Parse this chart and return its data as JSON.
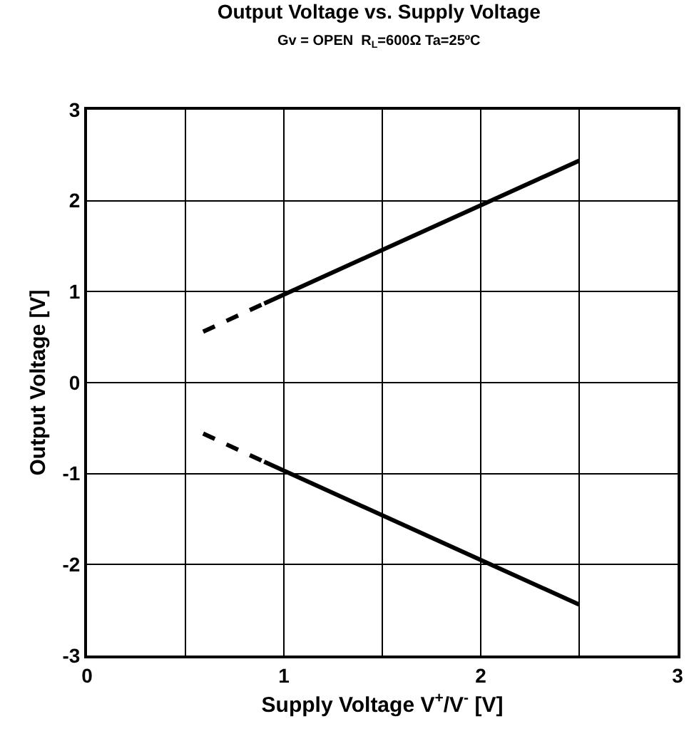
{
  "chart_data": {
    "type": "line",
    "title": "Output Voltage vs. Supply Voltage",
    "subtitle": "Gv = OPEN  R$_{L}$=600Ω Ta=25ºC",
    "xlabel": "Supply Voltage V$^{+}$/V$^{-}$ [V]",
    "ylabel": "Output Voltage [V]",
    "series": [
      {
        "color": "#000000",
        "line_style": "dashed",
        "x": [
          0.59,
          0.9
        ],
        "values": [
          0.56,
          0.87
        ]
      },
      {
        "color": "#000000",
        "line_style": "solid",
        "x": [
          0.9,
          2.5
        ],
        "values": [
          0.87,
          2.44
        ]
      },
      {
        "color": "#000000",
        "line_style": "dashed",
        "x": [
          0.59,
          0.9
        ],
        "values": [
          -0.56,
          -0.87
        ]
      },
      {
        "color": "#000000",
        "line_style": "solid",
        "x": [
          0.9,
          2.5
        ],
        "values": [
          -0.87,
          -2.44
        ]
      }
    ],
    "xlim": [
      0,
      3
    ],
    "xticks": [
      0,
      {
        "value": 0.5,
        "label": null
      },
      1,
      {
        "value": 1.5,
        "label": null
      },
      2,
      {
        "value": 2.5,
        "label": null
      },
      3
    ],
    "ylim": [
      -3,
      3
    ],
    "yticks": [
      -3,
      -2,
      -1,
      0,
      1,
      2,
      3
    ],
    "grid": true,
    "marker": "none"
  }
}
